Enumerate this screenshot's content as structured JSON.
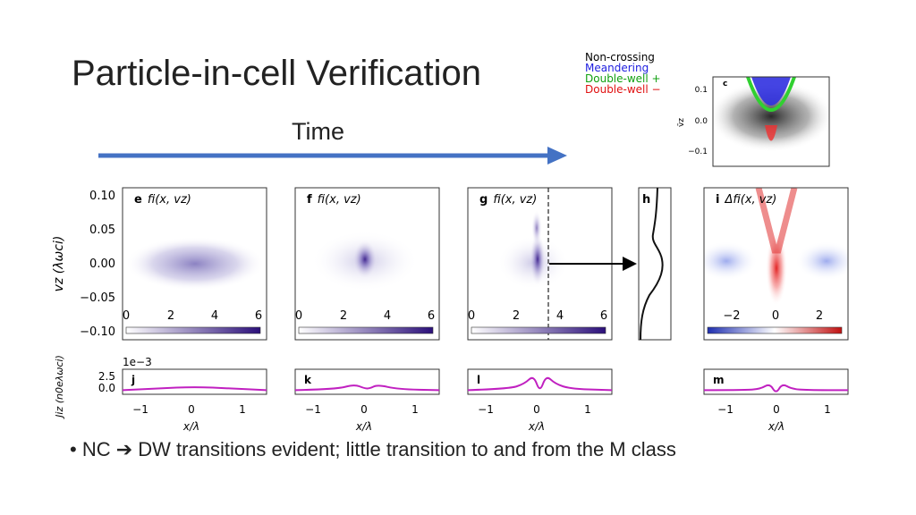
{
  "slide": {
    "title": "Particle-in-cell Verification",
    "time_label": "Time",
    "bullet": {
      "marker": "•",
      "lead": "NC",
      "arrow": "➔",
      "text": "DW transitions evident; little transition to and from the M class"
    },
    "legend": [
      {
        "label": "Non-crossing",
        "color": "#000000"
      },
      {
        "label": "Meandering",
        "color": "#2020e0"
      },
      {
        "label": "Double-well +",
        "color": "#10a010"
      },
      {
        "label": "Double-well −",
        "color": "#e01010"
      }
    ],
    "arrow_color": "#4472c4"
  },
  "chart_data": [
    {
      "type": "heatmap",
      "panel": "c",
      "ylabel": "v̄z",
      "y_ticks": [
        "0.1",
        "0.0",
        "−0.1"
      ],
      "ylim": [
        -0.15,
        0.12
      ]
    },
    {
      "type": "heatmap",
      "panel": "e",
      "title": "fi(x, vz)",
      "ylabel": "vz (λωci)",
      "y_ticks": [
        "0.10",
        "0.05",
        "0.00",
        "−0.05",
        "−0.10"
      ],
      "ylim": [
        -0.1,
        0.1
      ],
      "colorbar_ticks": [
        "0",
        "2",
        "4",
        "6"
      ],
      "colormap": "white-purple"
    },
    {
      "type": "heatmap",
      "panel": "f",
      "title": "fi(x, vz)",
      "colorbar_ticks": [
        "0",
        "2",
        "4",
        "6"
      ],
      "colormap": "white-purple"
    },
    {
      "type": "heatmap",
      "panel": "g",
      "title": "fi(x, vz)",
      "colorbar_ticks": [
        "0",
        "2",
        "4",
        "6"
      ],
      "colormap": "white-purple"
    },
    {
      "type": "line",
      "panel": "h",
      "title": "",
      "description_points": {
        "v": [
          -0.1,
          -0.06,
          -0.03,
          0.0,
          0.02,
          0.03,
          0.06,
          0.1
        ],
        "f": [
          0.05,
          0.15,
          0.6,
          0.95,
          0.6,
          0.35,
          0.3,
          0.28
        ]
      }
    },
    {
      "type": "heatmap",
      "panel": "i",
      "title": "Δfi(x, vz)",
      "colorbar_ticks": [
        "−2",
        "0",
        "2"
      ],
      "colormap": "blue-white-red"
    },
    {
      "type": "line",
      "panel": "j",
      "ylabel": "Jiz (n0eλωci)",
      "xlabel": "x/λ",
      "scale_label": "1e−3",
      "y_ticks": [
        "2.5",
        "0.0"
      ],
      "x_ticks": [
        "−1",
        "0",
        "1"
      ],
      "xlim": [
        -1.4,
        1.4
      ],
      "ylim": [
        -1,
        5
      ],
      "x": [
        -1.4,
        -0.7,
        0,
        0.7,
        1.4
      ],
      "y": [
        0.0,
        0.4,
        0.8,
        0.4,
        0.0
      ]
    },
    {
      "type": "line",
      "panel": "k",
      "xlabel": "x/λ",
      "x_ticks": [
        "−1",
        "0",
        "1"
      ],
      "xlim": [
        -1.4,
        1.4
      ],
      "ylim": [
        -1,
        5
      ],
      "x": [
        -1.4,
        -0.6,
        -0.25,
        -0.05,
        0.05,
        0.2,
        0.6,
        1.4
      ],
      "y": [
        0.0,
        0.2,
        1.4,
        0.4,
        0.4,
        1.3,
        0.2,
        0.0
      ]
    },
    {
      "type": "line",
      "panel": "l",
      "xlabel": "x/λ",
      "x_ticks": [
        "−1",
        "0",
        "1"
      ],
      "xlim": [
        -1.4,
        1.4
      ],
      "ylim": [
        -1,
        5
      ],
      "x": [
        -1.4,
        -0.6,
        -0.3,
        -0.12,
        0.0,
        0.12,
        0.3,
        0.6,
        1.4
      ],
      "y": [
        0.0,
        0.3,
        1.5,
        3.6,
        -0.6,
        3.6,
        1.5,
        0.3,
        0.0
      ]
    },
    {
      "type": "line",
      "panel": "m",
      "xlabel": "x/λ",
      "x_ticks": [
        "−1",
        "0",
        "1"
      ],
      "xlim": [
        -1.4,
        1.4
      ],
      "ylim": [
        -1,
        5
      ],
      "x": [
        -1.4,
        -0.6,
        -0.3,
        -0.12,
        0.0,
        0.12,
        0.3,
        0.6,
        1.4
      ],
      "y": [
        0.0,
        0.0,
        0.3,
        1.6,
        -0.9,
        1.6,
        0.3,
        0.0,
        0.0
      ]
    }
  ]
}
